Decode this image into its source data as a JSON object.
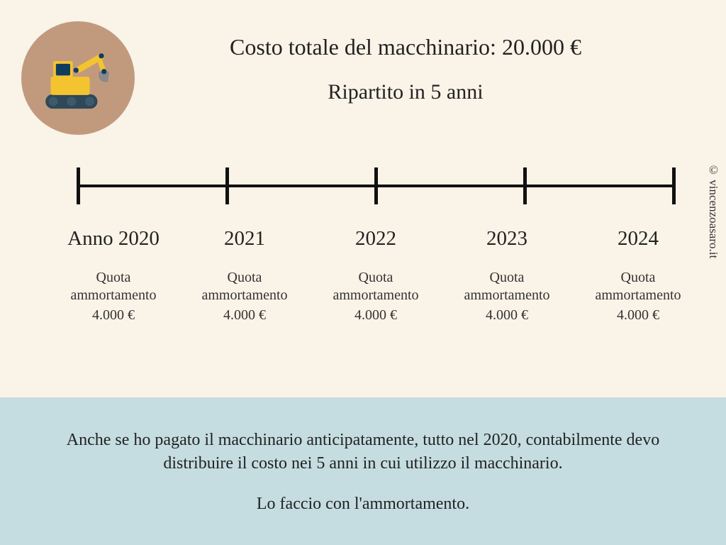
{
  "colors": {
    "main_bg": "#faf3e7",
    "footer_bg": "#c5dde1",
    "icon_circle_bg": "#c19a7e",
    "text": "#222222",
    "timeline": "#111111",
    "excavator_body": "#f4c430",
    "excavator_cab": "#103d5d",
    "excavator_tracks": "#2f4858",
    "excavator_bucket": "#a0a0a0"
  },
  "header": {
    "line1": "Costo totale del macchinario: 20.000 €",
    "line2": "Ripartito in 5 anni"
  },
  "timeline": {
    "tick_positions_pct": [
      0,
      25,
      50,
      75,
      100
    ],
    "years": [
      {
        "label": "Anno 2020",
        "quota_label": "Quota\nammortamento",
        "amount": "4.000 €"
      },
      {
        "label": "2021",
        "quota_label": "Quota\nammortamento",
        "amount": "4.000 €"
      },
      {
        "label": "2022",
        "quota_label": "Quota\nammortamento",
        "amount": "4.000 €"
      },
      {
        "label": "2023",
        "quota_label": "Quota\nammortamento",
        "amount": "4.000 €"
      },
      {
        "label": "2024",
        "quota_label": "Quota\nammortamento",
        "amount": "4.000 €"
      }
    ]
  },
  "footer": {
    "para1": "Anche se ho pagato il macchinario anticipatamente, tutto nel 2020, contabilmente devo distribuire il costo nei 5 anni in cui utilizzo il macchinario.",
    "para2": "Lo faccio con l'ammortamento."
  },
  "watermark": "© vincenzoasaro.it",
  "icon_name": "excavator-icon"
}
